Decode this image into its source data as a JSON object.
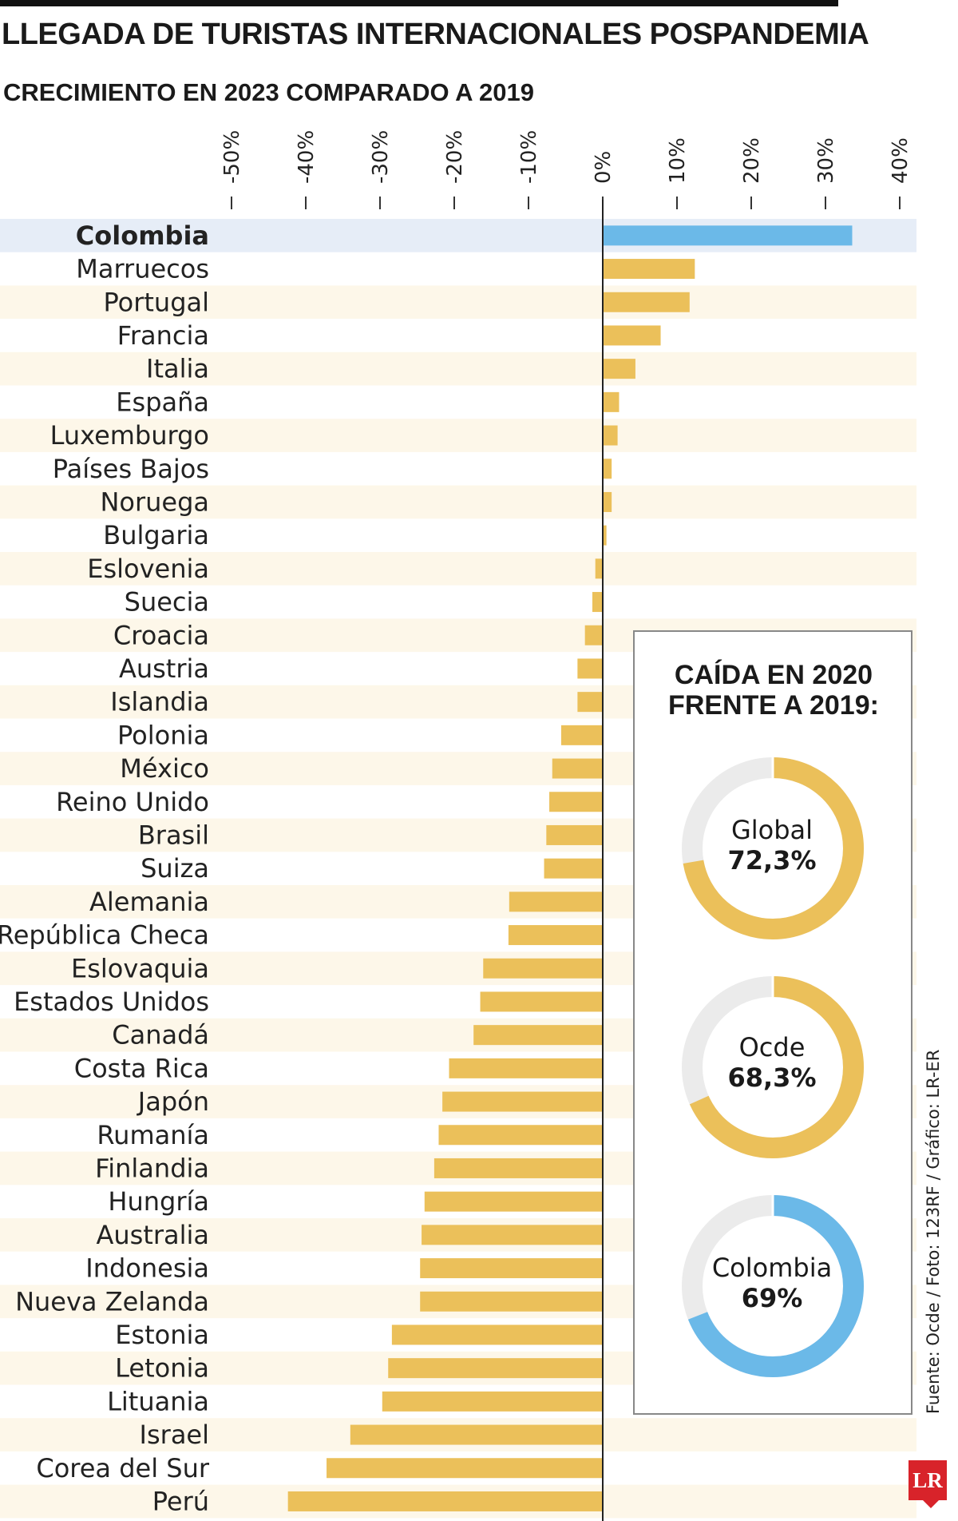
{
  "header": {
    "title": "LLEGADA DE TURISTAS INTERNACIONALES POSPANDEMIA",
    "subtitle": "CRECIMIENTO EN 2023 COMPARADO A 2019"
  },
  "colors": {
    "bar": "#ebc05a",
    "highlight_bar": "#6bb9e8",
    "highlight_row": "#e6edf7",
    "row_stripe": "#fdf7e9",
    "donut_track": "#ebebeb"
  },
  "chart_data": {
    "type": "bar",
    "orientation": "horizontal",
    "highlight": "Colombia",
    "x_ticks": [
      "-50%",
      "-40%",
      "-30%",
      "-20%",
      "-10%",
      "0%",
      "10%",
      "20%",
      "30%",
      "40%"
    ],
    "xlim": [
      -50,
      40
    ],
    "categories": [
      "Colombia",
      "Marruecos",
      "Portugal",
      "Francia",
      "Italia",
      "España",
      "Luxemburgo",
      "Países Bajos",
      "Noruega",
      "Bulgaria",
      "Eslovenia",
      "Suecia",
      "Croacia",
      "Austria",
      "Islandia",
      "Polonia",
      "México",
      "Reino Unido",
      "Brasil",
      "Suiza",
      "Alemania",
      "República Checa",
      "Eslovaquia",
      "Estados Unidos",
      "Canadá",
      "Costa Rica",
      "Japón",
      "Rumanía",
      "Finlandia",
      "Hungría",
      "Australia",
      "Indonesia",
      "Nueva Zelanda",
      "Estonia",
      "Letonia",
      "Lituania",
      "Israel",
      "Corea del Sur",
      "Perú"
    ],
    "values": [
      33.6,
      12.4,
      11.7,
      7.8,
      4.4,
      2.2,
      2.0,
      1.2,
      1.2,
      0.5,
      -1.0,
      -1.4,
      -2.4,
      -3.4,
      -3.4,
      -5.6,
      -6.8,
      -7.2,
      -7.6,
      -7.9,
      -12.6,
      -12.7,
      -16.1,
      -16.5,
      -17.4,
      -20.7,
      -21.6,
      -22.1,
      -22.7,
      -24.0,
      -24.4,
      -24.6,
      -24.6,
      -28.4,
      -28.9,
      -29.7,
      -34.0,
      -37.2,
      -42.4
    ]
  },
  "inset": {
    "title_line1": "CAÍDA EN 2020",
    "title_line2": "FRENTE A 2019:",
    "donuts": [
      {
        "name": "Global",
        "value_label": "72,3%",
        "value": 72.3,
        "color": "#ebc05a"
      },
      {
        "name": "Ocde",
        "value_label": "68,3%",
        "value": 68.3,
        "color": "#ebc05a"
      },
      {
        "name": "Colombia",
        "value_label": "69%",
        "value": 69,
        "color": "#6bb9e8"
      }
    ]
  },
  "footer": {
    "source": "Fuente: Ocde / Foto: 123RF / Gráfico: LR-ER",
    "logo": "LR"
  }
}
